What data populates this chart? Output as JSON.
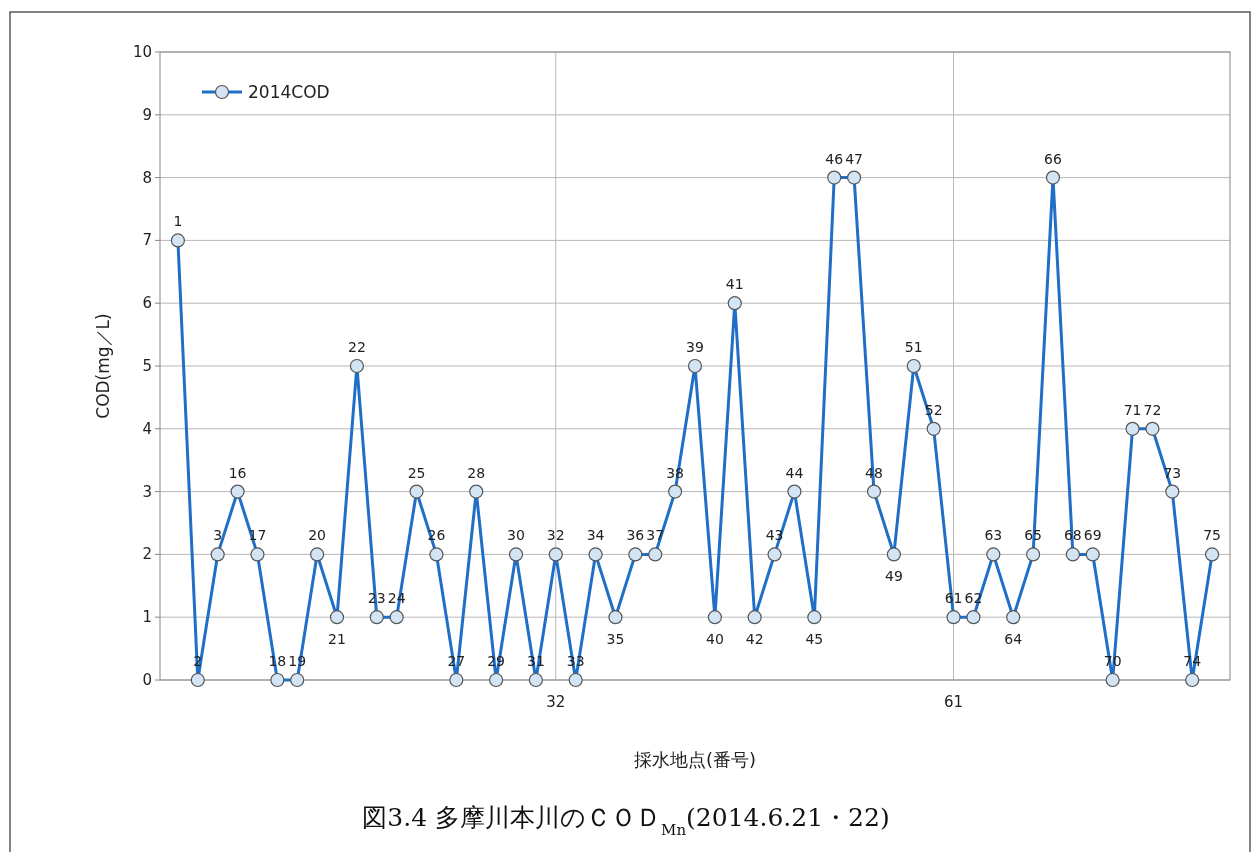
{
  "chart_data": {
    "type": "line",
    "ylabel": "COD(mg／L)",
    "xlabel": "採水地点(番号)",
    "categories": [
      null,
      null,
      null,
      null,
      null,
      null,
      null,
      null,
      null,
      null,
      null,
      null,
      null,
      null,
      null,
      null,
      null,
      null,
      null,
      "32",
      null,
      null,
      null,
      null,
      null,
      null,
      null,
      null,
      null,
      null,
      null,
      null,
      null,
      null,
      null,
      null,
      null,
      null,
      null,
      "61",
      null,
      null,
      null,
      null,
      null,
      null,
      null,
      null,
      null,
      null,
      null,
      null,
      null
    ],
    "series": [
      {
        "name": "2014COD",
        "color": "#1f6fc8",
        "values": [
          7,
          0,
          2,
          3,
          2,
          0,
          0,
          2,
          1,
          5,
          1,
          1,
          3,
          2,
          0,
          3,
          0,
          2,
          0,
          2,
          0,
          2,
          1,
          2,
          2,
          3,
          5,
          1,
          6,
          1,
          2,
          3,
          1,
          8,
          8,
          3,
          2,
          5,
          4,
          1,
          1,
          2,
          1,
          2,
          8,
          2,
          2,
          0,
          4,
          4,
          3,
          0,
          2
        ]
      }
    ],
    "ylim": [
      0,
      10
    ],
    "yticks": [
      0,
      1,
      2,
      3,
      4,
      5,
      6,
      7,
      8,
      9,
      10
    ],
    "grid": true,
    "legend": "top left",
    "marker": "circle",
    "line_style": "solid",
    "annotations": [
      {
        "text": "1",
        "y": 7
      },
      {
        "text": "2",
        "y": 0
      },
      {
        "text": "3",
        "y": 2
      },
      {
        "text": "16",
        "y": 3
      },
      {
        "text": "17",
        "y": 2
      },
      {
        "text": "18",
        "y": 0
      },
      {
        "text": "19",
        "y": 0
      },
      {
        "text": "20",
        "y": 2
      },
      {
        "text": "21",
        "y": 1
      },
      {
        "text": "22",
        "y": 5
      },
      {
        "text": "23",
        "y": 1
      },
      {
        "text": "24",
        "y": 1
      },
      {
        "text": "25",
        "y": 3
      },
      {
        "text": "26",
        "y": 2
      },
      {
        "text": "27",
        "y": 0
      },
      {
        "text": "28",
        "y": 3
      },
      {
        "text": "29",
        "y": 0
      },
      {
        "text": "30",
        "y": 2
      },
      {
        "text": "31",
        "y": 0
      },
      {
        "text": "32",
        "y": 2
      },
      {
        "text": "33",
        "y": 0
      },
      {
        "text": "34",
        "y": 2
      },
      {
        "text": "35",
        "y": 1
      },
      {
        "text": "36",
        "y": 2
      },
      {
        "text": "37",
        "y": 2
      },
      {
        "text": "38",
        "y": 3
      },
      {
        "text": "39",
        "y": 5
      },
      {
        "text": "40",
        "y": 1
      },
      {
        "text": "41",
        "y": 6
      },
      {
        "text": "42",
        "y": 1
      },
      {
        "text": "43",
        "y": 2
      },
      {
        "text": "44",
        "y": 3
      },
      {
        "text": "45",
        "y": 1
      },
      {
        "text": "46",
        "y": 8
      },
      {
        "text": "47",
        "y": 8
      },
      {
        "text": "48",
        "y": 3
      },
      {
        "text": "49",
        "y": 2
      },
      {
        "text": "51",
        "y": 5
      },
      {
        "text": "52",
        "y": 4
      },
      {
        "text": "61",
        "y": 1
      },
      {
        "text": "62",
        "y": 1
      },
      {
        "text": "63",
        "y": 2
      },
      {
        "text": "64",
        "y": 1
      },
      {
        "text": "65",
        "y": 2
      },
      {
        "text": "66",
        "y": 8
      },
      {
        "text": "68",
        "y": 2
      },
      {
        "text": "69",
        "y": 2
      },
      {
        "text": "70",
        "y": 0
      },
      {
        "text": "71",
        "y": 4
      },
      {
        "text": "72",
        "y": 4
      },
      {
        "text": "73",
        "y": 3
      },
      {
        "text": "74",
        "y": 0
      },
      {
        "text": "75",
        "y": 2
      },
      "図3.4 多摩川本川のＣＯＤ$_{Mn}$(2014.6.21・22)"
    ]
  }
}
